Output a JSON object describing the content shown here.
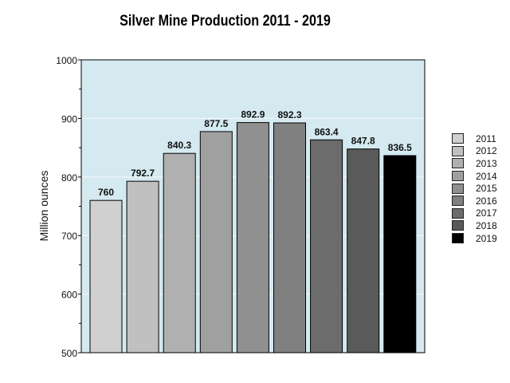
{
  "chart_data": {
    "type": "bar",
    "title": "Silver Mine Production 2011 - 2019",
    "xlabel": "",
    "ylabel": "Million ounces",
    "ylim": [
      500,
      1000
    ],
    "yticks": [
      "500",
      "600",
      "700",
      "800",
      "900",
      "1000"
    ],
    "categories": [
      "2011",
      "2012",
      "2013",
      "2014",
      "2015",
      "2016",
      "2017",
      "2018",
      "2019"
    ],
    "values": [
      760,
      792.7,
      840.3,
      877.5,
      892.9,
      892.3,
      863.4,
      847.8,
      836.5
    ],
    "value_labels": [
      "760",
      "792.7",
      "840.3",
      "877.5",
      "892.9",
      "892.3",
      "863.4",
      "847.8",
      "836.5"
    ],
    "colors": [
      "#d0d0d0",
      "#c0c0c0",
      "#b0b0b0",
      "#a0a0a0",
      "#909090",
      "#808080",
      "#6c6c6c",
      "#5a5a5a",
      "#000000"
    ],
    "plot_background": "#d4e9f0",
    "grid": true,
    "legend_position": "right"
  }
}
